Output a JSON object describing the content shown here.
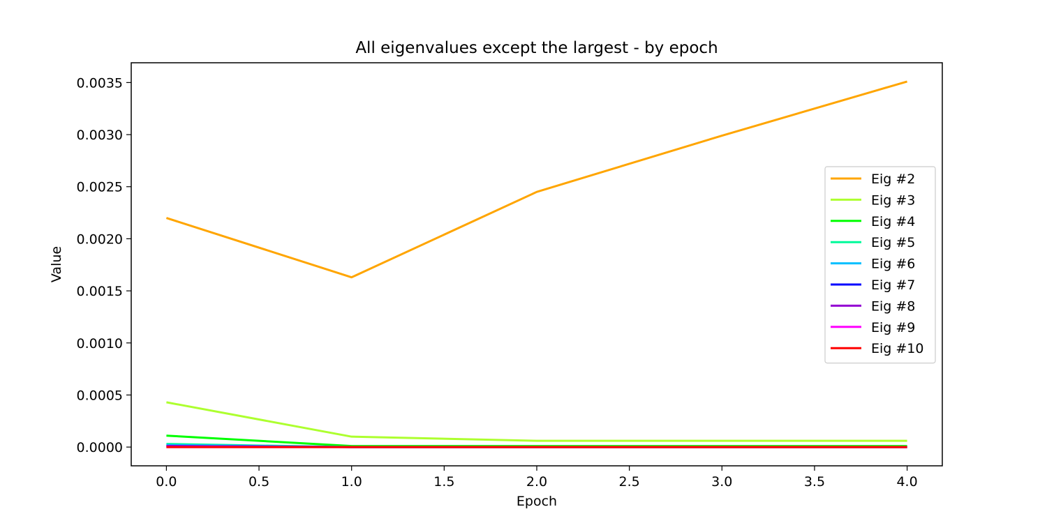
{
  "chart_data": {
    "type": "line",
    "title": "All eigenvalues except the largest - by epoch",
    "xlabel": "Epoch",
    "ylabel": "Value",
    "xlim": [
      -0.19,
      4.19
    ],
    "ylim": [
      -0.00018,
      0.00369
    ],
    "xticks": [
      0.0,
      0.5,
      1.0,
      1.5,
      2.0,
      2.5,
      3.0,
      3.5,
      4.0
    ],
    "xtick_labels": [
      "0.0",
      "0.5",
      "1.0",
      "1.5",
      "2.0",
      "2.5",
      "3.0",
      "3.5",
      "4.0"
    ],
    "yticks": [
      0.0,
      0.0005,
      0.001,
      0.0015,
      0.002,
      0.0025,
      0.003,
      0.0035
    ],
    "ytick_labels": [
      "0.0000",
      "0.0005",
      "0.0010",
      "0.0015",
      "0.0020",
      "0.0025",
      "0.0030",
      "0.0035"
    ],
    "grid": false,
    "legend_position": "right",
    "x": [
      0,
      1,
      2,
      3,
      4
    ],
    "series": [
      {
        "name": "Eig #2",
        "color": "#ffa500",
        "values": [
          0.0022,
          0.00163,
          0.00245,
          0.00299,
          0.00351
        ]
      },
      {
        "name": "Eig #3",
        "color": "#adff2f",
        "values": [
          0.00043,
          0.0001,
          6e-05,
          6e-05,
          6e-05
        ]
      },
      {
        "name": "Eig #4",
        "color": "#00ff00",
        "values": [
          0.00011,
          1e-05,
          1e-05,
          1e-05,
          1e-05
        ]
      },
      {
        "name": "Eig #5",
        "color": "#00fa9a",
        "values": [
          3e-05,
          0.0,
          0.0,
          0.0,
          0.0
        ]
      },
      {
        "name": "Eig #6",
        "color": "#00bfff",
        "values": [
          2e-05,
          0.0,
          0.0,
          0.0,
          0.0
        ]
      },
      {
        "name": "Eig #7",
        "color": "#0000ff",
        "values": [
          1e-05,
          0.0,
          0.0,
          0.0,
          0.0
        ]
      },
      {
        "name": "Eig #8",
        "color": "#9400d3",
        "values": [
          1e-05,
          0.0,
          0.0,
          0.0,
          0.0
        ]
      },
      {
        "name": "Eig #9",
        "color": "#ff00ff",
        "values": [
          0.0,
          0.0,
          0.0,
          0.0,
          0.0
        ]
      },
      {
        "name": "Eig #10",
        "color": "#ff0000",
        "values": [
          0.0,
          0.0,
          0.0,
          0.0,
          0.0
        ]
      }
    ]
  }
}
